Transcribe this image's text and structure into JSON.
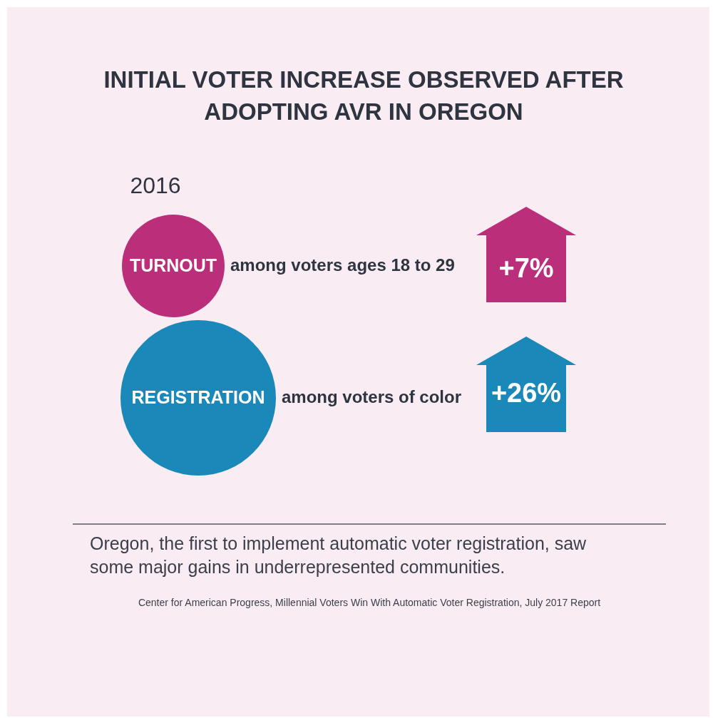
{
  "chart_data": {
    "type": "other",
    "title": "INITIAL VOTER INCREASE OBSERVED AFTER ADOPTING AVR IN OREGON",
    "subtitle": "2016",
    "categories": [
      "TURNOUT",
      "REGISTRATION"
    ],
    "values": [
      7,
      26
    ],
    "value_labels": [
      "+7%",
      "+26%"
    ],
    "colors": [
      "#bb2e7a",
      "#1a88b8"
    ],
    "annotations": [
      "among voters ages 18 to 29",
      "among voters of color",
      "Oregon, the first to implement automatic voter registration, saw some major gains in underrepresented communities.",
      "Center for American Progress, Millennial Voters Win With Automatic Voter Registration, July 2017 Report"
    ]
  }
}
